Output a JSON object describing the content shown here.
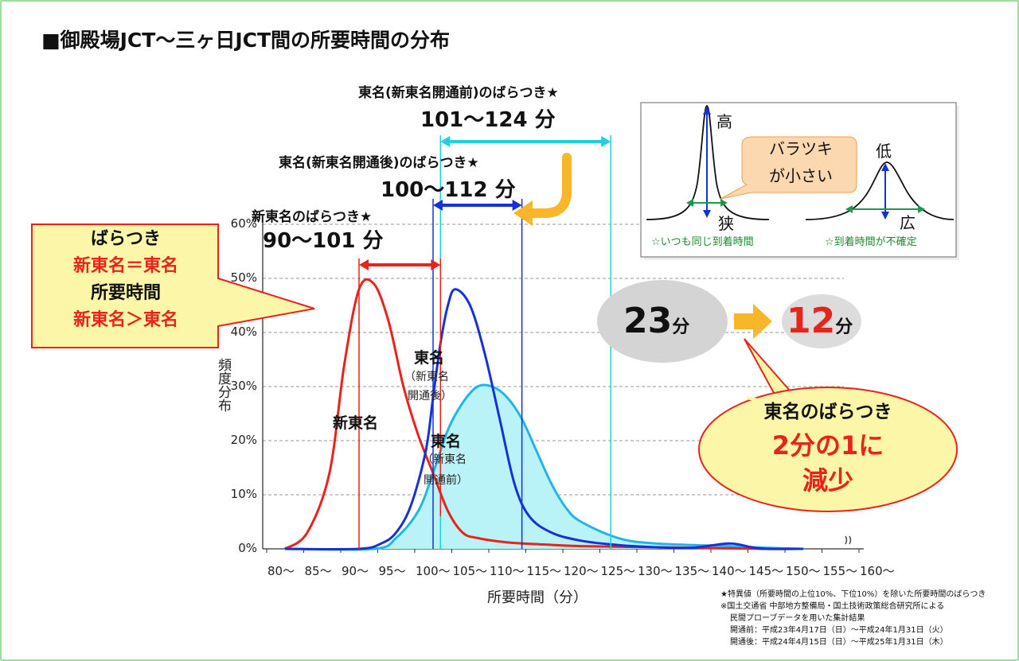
{
  "title": "■御殿場JCT〜三ヶ日JCT間の所要時間の分布",
  "chart_data": {
    "type": "line",
    "title": "■御殿場JCT〜三ヶ日JCT間の所要時間の分布",
    "xlabel": "所要時間（分）",
    "ylabel": "頻度分布",
    "categories": [
      "80〜",
      "85〜",
      "90〜",
      "95〜",
      "100〜",
      "105〜",
      "110〜",
      "115〜",
      "120〜",
      "125〜",
      "130〜",
      "135〜",
      "140〜",
      "145〜",
      "150〜",
      "155〜",
      "160〜"
    ],
    "ylim": [
      0,
      60
    ],
    "yticks": [
      "0%",
      "10%",
      "20%",
      "30%",
      "40%",
      "50%",
      "60%"
    ],
    "grid": true,
    "series": [
      {
        "name": "新東名",
        "color": "#e8231c",
        "x": [
          80,
          83,
          86,
          88,
          90,
          92,
          94,
          96,
          98,
          100,
          102,
          104,
          106,
          110,
          115,
          120,
          130,
          145,
          150
        ],
        "y": [
          0,
          3,
          14,
          34,
          48,
          49,
          42,
          30,
          21,
          14,
          7,
          3,
          2,
          1.2,
          0.8,
          0.5,
          0.3,
          0,
          0
        ]
      },
      {
        "name": "東名（新東名開通後）",
        "color": "#1432d8",
        "x": [
          80,
          90,
          93,
          95,
          97,
          99,
          100,
          101,
          102,
          103,
          105,
          107,
          109,
          111,
          113,
          116,
          120,
          125,
          130,
          135,
          140,
          143,
          145,
          150
        ],
        "y": [
          0,
          0,
          1,
          3,
          8,
          18,
          28,
          38,
          45,
          48,
          45,
          36,
          24,
          12,
          6,
          3,
          1.5,
          0.7,
          0.3,
          0.2,
          1,
          0.3,
          0,
          0
        ]
      },
      {
        "name": "東名（新東名開通前）",
        "color": "#22b6e8",
        "fill": "#b9f2f7",
        "x": [
          80,
          92,
          95,
          98,
          100,
          102,
          104,
          106,
          108,
          110,
          112,
          114,
          116,
          118,
          120,
          125,
          130,
          140,
          145,
          150
        ],
        "y": [
          0,
          0,
          2,
          7,
          14,
          22,
          27,
          30,
          30,
          28,
          24,
          18,
          12,
          7.5,
          5,
          2,
          1,
          0.5,
          0.2,
          0
        ]
      }
    ],
    "ranges": [
      {
        "caption": "東名(新東名開通前)のばらつき★",
        "value": "101〜124 分",
        "from": 101,
        "to": 124,
        "color": "#20d0e0"
      },
      {
        "caption": "東名(新東名開通後)のばらつき★",
        "value": "100〜112 分",
        "from": 100,
        "to": 112,
        "color": "#1432d8"
      },
      {
        "caption": "新東名のばらつき★",
        "value": "90〜101 分",
        "from": 90,
        "to": 101,
        "color": "#e8231c"
      }
    ],
    "annotations": {
      "curve_labels": {
        "shin_tomei": "新東名",
        "tomei_after_title": "東名",
        "tomei_after_sub1": "（新東名",
        "tomei_after_sub2": "開通後）",
        "tomei_before_title": "東名",
        "tomei_before_sub1": "（新東名",
        "tomei_before_sub2": "開通前）"
      },
      "callout_left": [
        "ばらつき",
        "新東名＝東名",
        "所要時間",
        "新東名＞東名"
      ],
      "before_minutes": "23",
      "after_minutes": "12",
      "minute_unit": "分",
      "callout_right": [
        "東名のばらつき",
        "2分の1に",
        "減少"
      ]
    },
    "inset": {
      "high": "高",
      "narrow": "狭",
      "low": "低",
      "wide": "広",
      "bubble_line1": "バラツキ",
      "bubble_line2": "が小さい",
      "caption_left": "☆いつも同じ到着時間",
      "caption_right": "☆到着時間が不確定"
    },
    "footnotes": [
      "★特異値（所要時間の上位10%、下位10%）を除いた所要時間のばらつき",
      "※国土交通省 中部地方整備局・国土技術政策総合研究所による",
      "民間プローブデータを用いた集計結果",
      "開通前：平成23年4月17日（日）〜平成24年1月31日（火）",
      "開通後：平成24年4月15日（日）〜平成25年1月31日（木）"
    ],
    "colors": {
      "red": "#e8231c",
      "blue": "#1432d8",
      "cyan": "#22b6e8",
      "fill": "#b9f2f7",
      "arrow": "#f9b62b",
      "callout_fill": "#fbf6a8"
    }
  }
}
